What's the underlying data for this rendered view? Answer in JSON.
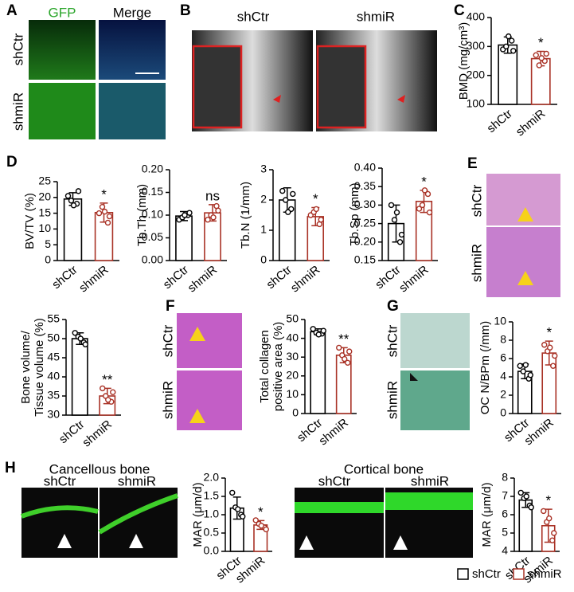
{
  "panel_labels": [
    "A",
    "B",
    "C",
    "D",
    "E",
    "F",
    "G",
    "H"
  ],
  "panels": {
    "A": {
      "columns": [
        "GFP",
        "Merge"
      ],
      "rows": [
        "shCtr",
        "shmiR"
      ]
    },
    "B": {
      "columns": [
        "shCtr",
        "shmiR"
      ]
    },
    "E": {
      "rows": [
        "shCtr",
        "shmiR"
      ]
    },
    "F": {
      "rows": [
        "shCtr",
        "shmiR"
      ]
    },
    "G": {
      "rows": [
        "shCtr",
        "shmiR"
      ]
    },
    "H": {
      "titles": [
        "Cancellous bone",
        "Cortical bone"
      ],
      "columns": [
        "shCtr",
        "shmiR",
        "shCtr",
        "shmiR"
      ]
    }
  },
  "legend": [
    {
      "name": "shCtr",
      "color": "#000000"
    },
    {
      "name": "shmiR",
      "color": "#a93226"
    }
  ],
  "chart_data": [
    {
      "type": "bar",
      "ylabel": "BMD (mg/cm³)",
      "categories": [
        "shCtr",
        "shmiR"
      ],
      "colors": [
        "#000000",
        "#a93226"
      ],
      "values": [
        305,
        258
      ],
      "errors": [
        28,
        25
      ],
      "points": [
        [
          290,
          320,
          300,
          285,
          335
        ],
        [
          270,
          250,
          235,
          275,
          260
        ]
      ],
      "annotation": "*",
      "ylim": [
        100,
        400
      ],
      "yticks": [
        100,
        200,
        300,
        400
      ]
    },
    {
      "type": "bar",
      "ylabel": "BV/TV (%)",
      "categories": [
        "shCtr",
        "shmiR"
      ],
      "colors": [
        "#000000",
        "#a93226"
      ],
      "values": [
        19.5,
        15.2
      ],
      "errors": [
        2,
        3
      ],
      "points": [
        [
          20.5,
          18,
          19,
          22,
          17.5
        ],
        [
          15,
          12,
          17,
          14,
          15.5
        ]
      ],
      "annotation": "*",
      "ylim": [
        0,
        25
      ],
      "yticks": [
        0,
        5,
        10,
        15,
        20,
        25
      ]
    },
    {
      "type": "bar",
      "ylabel": "Tb.Th (mm)",
      "categories": [
        "shCtr",
        "shmiR"
      ],
      "colors": [
        "#000000",
        "#a93226"
      ],
      "values": [
        0.098,
        0.105
      ],
      "errors": [
        0.01,
        0.018
      ],
      "points": [
        [
          0.09,
          0.1,
          0.095,
          0.105,
          0.1
        ],
        [
          0.09,
          0.12,
          0.1,
          0.11,
          0.095
        ]
      ],
      "annotation": "ns",
      "ylim": [
        0,
        0.2
      ],
      "yticks": [
        {
          "value": 0,
          "label": "0.00"
        },
        0.05,
        {
          "value": 0.1,
          "label": "0.10"
        },
        0.15,
        {
          "value": 0.2,
          "label": "0.20"
        }
      ]
    },
    {
      "type": "bar",
      "ylabel": "Tb.N (1/mm)",
      "categories": [
        "shCtr",
        "shmiR"
      ],
      "colors": [
        "#000000",
        "#a93226"
      ],
      "values": [
        2.0,
        1.45
      ],
      "errors": [
        0.4,
        0.3
      ],
      "points": [
        [
          2.3,
          1.7,
          2.0,
          2.2,
          1.6
        ],
        [
          1.5,
          1.2,
          1.6,
          1.35,
          1.7
        ]
      ],
      "annotation": "*",
      "ylim": [
        0,
        3
      ],
      "yticks": [
        0,
        1,
        2,
        3
      ]
    },
    {
      "type": "bar",
      "ylabel": "Tb.Sp (mm)",
      "categories": [
        "shCtr",
        "shmiR"
      ],
      "colors": [
        "#000000",
        "#a93226"
      ],
      "values": [
        0.25,
        0.31
      ],
      "errors": [
        0.05,
        0.03
      ],
      "points": [
        [
          0.3,
          0.2,
          0.26,
          0.22,
          0.28
        ],
        [
          0.29,
          0.33,
          0.3,
          0.28,
          0.34
        ]
      ],
      "annotation": "*",
      "ylim": [
        0.15,
        0.4
      ],
      "yticks": [
        0.15,
        {
          "value": 0.2,
          "label": "0.20"
        },
        0.25,
        {
          "value": 0.3,
          "label": "0.30"
        },
        0.35,
        {
          "value": 0.4,
          "label": "0.40"
        }
      ]
    },
    {
      "type": "bar",
      "ylabel": [
        "Bone volume/",
        "Tissue volume (%)"
      ],
      "categories": [
        "shCtr",
        "shmiR"
      ],
      "colors": [
        "#000000",
        "#a93226"
      ],
      "values": [
        50,
        35
      ],
      "errors": [
        1.5,
        2
      ],
      "points": [
        [
          51.5,
          49,
          50.5,
          48.5,
          50
        ],
        [
          37,
          33.5,
          35,
          36,
          34
        ]
      ],
      "annotation": "**",
      "ylim": [
        30,
        55
      ],
      "yticks": [
        30,
        35,
        40,
        45,
        50,
        55
      ]
    },
    {
      "type": "bar",
      "ylabel": [
        "Total collagen",
        "positive area (%)"
      ],
      "categories": [
        "shCtr",
        "shmiR"
      ],
      "colors": [
        "#000000",
        "#a93226"
      ],
      "values": [
        43.5,
        31
      ],
      "errors": [
        1.5,
        4
      ],
      "points": [
        [
          45,
          42.5,
          43,
          44,
          42
        ],
        [
          35,
          27,
          31,
          33,
          29
        ]
      ],
      "annotation": "**",
      "ylim": [
        0,
        50
      ],
      "yticks": [
        0,
        10,
        20,
        30,
        40,
        50
      ]
    },
    {
      "type": "bar",
      "ylabel": "OC N/BPm (/mm)",
      "categories": [
        "shCtr",
        "shmiR"
      ],
      "colors": [
        "#000000",
        "#a93226"
      ],
      "values": [
        4.6,
        6.6
      ],
      "errors": [
        0.8,
        1.3
      ],
      "points": [
        [
          5.2,
          3.8,
          4.6,
          4.2,
          5.3
        ],
        [
          7.5,
          5.2,
          6.8,
          6.3,
          7.2
        ]
      ],
      "annotation": "*",
      "ylim": [
        0,
        10
      ],
      "yticks": [
        0,
        2,
        4,
        6,
        8,
        10
      ]
    },
    {
      "type": "bar",
      "ylabel": "MAR (μm/d)",
      "categories": [
        "shCtr",
        "shmiR"
      ],
      "colors": [
        "#000000",
        "#a93226"
      ],
      "values": [
        1.18,
        0.72
      ],
      "errors": [
        0.3,
        0.12
      ],
      "points": [
        [
          1.6,
          1.0,
          1.2,
          0.95,
          1.15
        ],
        [
          0.85,
          0.65,
          0.75,
          0.6,
          0.7
        ]
      ],
      "annotation": "*",
      "ylim": [
        0,
        2
      ],
      "yticks": [
        {
          "value": 0,
          "label": "0.0"
        },
        0.5,
        {
          "value": 1,
          "label": "1.0"
        },
        1.5,
        {
          "value": 2,
          "label": "2.0"
        }
      ]
    },
    {
      "type": "bar",
      "ylabel": "MAR (μm/d)",
      "categories": [
        "shCtr",
        "shmiR"
      ],
      "colors": [
        "#000000",
        "#a93226"
      ],
      "values": [
        6.8,
        5.4
      ],
      "errors": [
        0.4,
        0.9
      ],
      "points": [
        [
          7.2,
          6.5,
          6.9,
          6.4,
          7.0
        ],
        [
          6.2,
          4.6,
          5.6,
          5.0,
          5.8
        ]
      ],
      "annotation": "*",
      "ylim": [
        4,
        8
      ],
      "yticks": [
        4,
        5,
        6,
        7,
        8
      ]
    }
  ]
}
